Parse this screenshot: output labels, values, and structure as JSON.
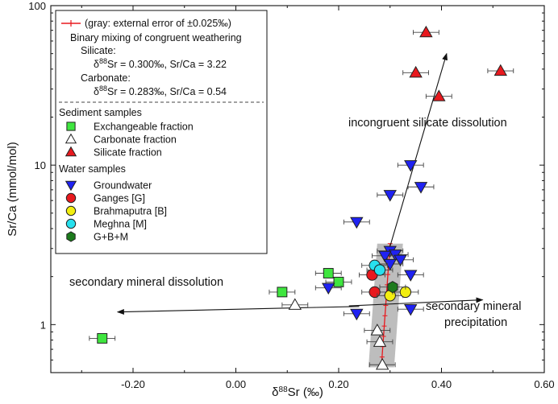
{
  "chart_data": {
    "type": "scatter",
    "title": "",
    "xlabel": "δ88Sr (‰)",
    "xlabel_parts": [
      "δ",
      "88",
      "Sr (‰)"
    ],
    "ylabel": "Sr/Ca (mmol/mol)",
    "xlim": [
      -0.36,
      0.6
    ],
    "ylim": [
      0.5,
      100
    ],
    "yscale": "log",
    "x_ticks": [
      -0.2,
      0.0,
      0.2,
      0.4,
      0.6
    ],
    "x_tick_labels": [
      "-0.20",
      "0.00",
      "0.20",
      "0.40",
      "0.60"
    ],
    "y_ticks": [
      1,
      10,
      100
    ],
    "y_tick_labels": [
      "1",
      "10",
      "100"
    ],
    "legend": {
      "placement": "top-left",
      "mixing_line_label": "(gray: external error of ±0.025‰)",
      "mixing_heading": "Binary mixing of congruent weathering",
      "silicate_label": "Silicate:",
      "silicate_value": "δ88Sr = 0.300‰, Sr/Ca = 3.22",
      "carbonate_label": "Carbonate:",
      "carbonate_value": "δ88Sr = 0.283‰, Sr/Ca = 0.54",
      "sediment_heading": "Sediment samples",
      "water_heading": "Water samples"
    },
    "annotations": [
      {
        "text": "incongruent silicate dissolution"
      },
      {
        "text": "secondary mineral dissolution"
      },
      {
        "text": "secondary mineral"
      },
      {
        "text": "precipitation"
      }
    ],
    "mixing_line": {
      "name": "Binary mixing of congruent weathering",
      "x": [
        0.283,
        0.3
      ],
      "y": [
        0.54,
        3.22
      ],
      "error": 0.025,
      "color": "#e8191e",
      "band_color": "#bdbdbd"
    },
    "arrows": [
      {
        "name": "incongruent silicate dissolution",
        "from": [
          0.3,
          3.1
        ],
        "to": [
          0.41,
          50
        ]
      },
      {
        "name": "secondary mineral dissolution",
        "from": [
          0.24,
          1.3
        ],
        "to": [
          -0.23,
          1.2
        ]
      },
      {
        "name": "secondary mineral precipitation",
        "from": [
          0.22,
          1.31
        ],
        "to": [
          0.48,
          1.43
        ]
      }
    ],
    "series": [
      {
        "name": "Exchangeable fraction",
        "group": "Sediment samples",
        "marker": "square",
        "color": "#3fe63f",
        "points": [
          {
            "x": -0.26,
            "y": 0.82,
            "xerr": 0.025
          },
          {
            "x": 0.09,
            "y": 1.6,
            "xerr": 0.025
          },
          {
            "x": 0.18,
            "y": 2.1,
            "xerr": 0.025
          },
          {
            "x": 0.2,
            "y": 1.85,
            "xerr": 0.025
          }
        ]
      },
      {
        "name": "Carbonate fraction",
        "group": "Sediment samples",
        "marker": "triangle-up",
        "color": "#ffffff",
        "points": [
          {
            "x": 0.115,
            "y": 1.33,
            "xerr": 0.025
          },
          {
            "x": 0.275,
            "y": 0.92,
            "xerr": 0.025
          },
          {
            "x": 0.28,
            "y": 0.78,
            "xerr": 0.025
          },
          {
            "x": 0.285,
            "y": 0.56,
            "xerr": 0.025
          }
        ]
      },
      {
        "name": "Silicate fraction",
        "group": "Sediment samples",
        "marker": "triangle-up",
        "color": "#e8191e",
        "points": [
          {
            "x": 0.37,
            "y": 68,
            "xerr": 0.025
          },
          {
            "x": 0.35,
            "y": 38,
            "xerr": 0.025
          },
          {
            "x": 0.515,
            "y": 39,
            "xerr": 0.025
          },
          {
            "x": 0.395,
            "y": 27,
            "xerr": 0.025
          }
        ]
      },
      {
        "name": "Groundwater",
        "group": "Water samples",
        "marker": "triangle-down",
        "color": "#1f22f2",
        "points": [
          {
            "x": 0.34,
            "y": 10,
            "xerr": 0.025
          },
          {
            "x": 0.36,
            "y": 7.3,
            "xerr": 0.025
          },
          {
            "x": 0.3,
            "y": 6.5,
            "xerr": 0.025
          },
          {
            "x": 0.235,
            "y": 4.4,
            "xerr": 0.025
          },
          {
            "x": 0.3,
            "y": 2.9,
            "xerr": 0.025
          },
          {
            "x": 0.31,
            "y": 2.75,
            "xerr": 0.025
          },
          {
            "x": 0.29,
            "y": 2.7,
            "xerr": 0.025
          },
          {
            "x": 0.32,
            "y": 2.55,
            "xerr": 0.025
          },
          {
            "x": 0.3,
            "y": 2.4,
            "xerr": 0.025
          },
          {
            "x": 0.34,
            "y": 2.05,
            "xerr": 0.025
          },
          {
            "x": 0.18,
            "y": 1.7,
            "xerr": 0.025
          },
          {
            "x": 0.34,
            "y": 1.25,
            "xerr": 0.025
          },
          {
            "x": 0.235,
            "y": 1.17,
            "xerr": 0.025
          }
        ]
      },
      {
        "name": "Ganges [G]",
        "group": "Water samples",
        "marker": "circle",
        "color": "#e8191e",
        "points": [
          {
            "x": 0.265,
            "y": 2.05,
            "xerr": 0.025
          },
          {
            "x": 0.27,
            "y": 1.6,
            "xerr": 0.025
          }
        ]
      },
      {
        "name": "Brahmaputra [B]",
        "group": "Water samples",
        "marker": "circle",
        "color": "#f2ee10",
        "points": [
          {
            "x": 0.3,
            "y": 1.52,
            "xerr": 0.025
          },
          {
            "x": 0.33,
            "y": 1.6,
            "xerr": 0.025
          }
        ]
      },
      {
        "name": "Meghna [M]",
        "group": "Water samples",
        "marker": "circle",
        "color": "#27e0ee",
        "points": [
          {
            "x": 0.27,
            "y": 2.35,
            "xerr": 0.025
          },
          {
            "x": 0.28,
            "y": 2.2,
            "xerr": 0.025
          }
        ]
      },
      {
        "name": "G+B+M",
        "group": "Water samples",
        "marker": "hexagon",
        "color": "#1c7a1c",
        "points": [
          {
            "x": 0.305,
            "y": 1.72,
            "xerr": 0.025
          }
        ]
      }
    ]
  }
}
